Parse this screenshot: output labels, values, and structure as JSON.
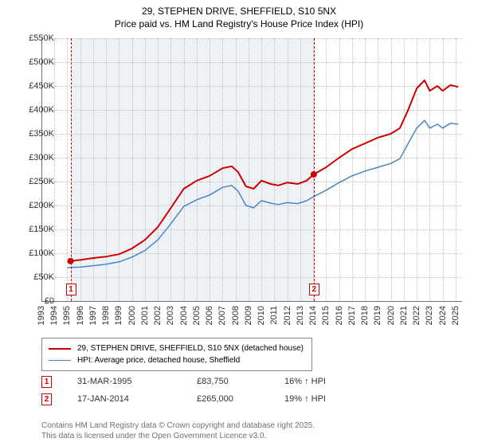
{
  "title_line1": "29, STEPHEN DRIVE, SHEFFIELD, S10 5NX",
  "title_line2": "Price paid vs. HM Land Registry's House Price Index (HPI)",
  "chart": {
    "background_color": "#ffffff",
    "shade_color": "#eef2f7",
    "grid_color": "#bfbfbf",
    "axis_color": "#707070",
    "x_years": [
      1993,
      1994,
      1995,
      1996,
      1997,
      1998,
      1999,
      2000,
      2001,
      2002,
      2003,
      2004,
      2005,
      2006,
      2007,
      2008,
      2009,
      2010,
      2011,
      2012,
      2013,
      2014,
      2015,
      2016,
      2017,
      2018,
      2019,
      2020,
      2021,
      2022,
      2023,
      2024,
      2025
    ],
    "xlim": [
      1993,
      2025.5
    ],
    "ylim": [
      0,
      550000
    ],
    "ytick_step": 50000,
    "yticks": [
      "£0",
      "£50K",
      "£100K",
      "£150K",
      "£200K",
      "£250K",
      "£300K",
      "£350K",
      "£400K",
      "£450K",
      "£500K",
      "£550K"
    ],
    "series": [
      {
        "name": "price_paid",
        "label": "29, STEPHEN DRIVE, SHEFFIELD, S10 5NX (detached house)",
        "color": "#cc0000",
        "width": 2,
        "points": [
          [
            1995.25,
            83750
          ],
          [
            1996,
            86000
          ],
          [
            1997,
            90000
          ],
          [
            1998,
            93000
          ],
          [
            1999,
            98000
          ],
          [
            2000,
            110000
          ],
          [
            2001,
            128000
          ],
          [
            2002,
            155000
          ],
          [
            2003,
            195000
          ],
          [
            2004,
            235000
          ],
          [
            2005,
            252000
          ],
          [
            2006,
            262000
          ],
          [
            2007,
            278000
          ],
          [
            2007.7,
            282000
          ],
          [
            2008.2,
            270000
          ],
          [
            2008.8,
            240000
          ],
          [
            2009.4,
            235000
          ],
          [
            2010,
            252000
          ],
          [
            2010.7,
            245000
          ],
          [
            2011.3,
            242000
          ],
          [
            2012,
            248000
          ],
          [
            2012.8,
            245000
          ],
          [
            2013.5,
            252000
          ],
          [
            2014.04,
            265000
          ],
          [
            2015,
            280000
          ],
          [
            2016,
            300000
          ],
          [
            2017,
            318000
          ],
          [
            2018,
            330000
          ],
          [
            2019,
            342000
          ],
          [
            2020,
            350000
          ],
          [
            2020.7,
            362000
          ],
          [
            2021.3,
            398000
          ],
          [
            2022,
            445000
          ],
          [
            2022.6,
            462000
          ],
          [
            2023,
            440000
          ],
          [
            2023.6,
            450000
          ],
          [
            2024,
            440000
          ],
          [
            2024.6,
            452000
          ],
          [
            2025.2,
            448000
          ]
        ]
      },
      {
        "name": "hpi",
        "label": "HPI: Average price, detached house, Sheffield",
        "color": "#4a86c5",
        "width": 1.5,
        "points": [
          [
            1995,
            70000
          ],
          [
            1996,
            71000
          ],
          [
            1997,
            74000
          ],
          [
            1998,
            77000
          ],
          [
            1999,
            82000
          ],
          [
            2000,
            92000
          ],
          [
            2001,
            106000
          ],
          [
            2002,
            128000
          ],
          [
            2003,
            162000
          ],
          [
            2004,
            198000
          ],
          [
            2005,
            212000
          ],
          [
            2006,
            222000
          ],
          [
            2007,
            238000
          ],
          [
            2007.7,
            242000
          ],
          [
            2008.2,
            230000
          ],
          [
            2008.8,
            200000
          ],
          [
            2009.4,
            195000
          ],
          [
            2010,
            210000
          ],
          [
            2010.7,
            205000
          ],
          [
            2011.3,
            202000
          ],
          [
            2012,
            206000
          ],
          [
            2012.8,
            204000
          ],
          [
            2013.5,
            210000
          ],
          [
            2014,
            218000
          ],
          [
            2015,
            232000
          ],
          [
            2016,
            248000
          ],
          [
            2017,
            262000
          ],
          [
            2018,
            272000
          ],
          [
            2019,
            280000
          ],
          [
            2020,
            288000
          ],
          [
            2020.7,
            298000
          ],
          [
            2021.3,
            328000
          ],
          [
            2022,
            362000
          ],
          [
            2022.6,
            378000
          ],
          [
            2023,
            362000
          ],
          [
            2023.6,
            370000
          ],
          [
            2024,
            362000
          ],
          [
            2024.6,
            372000
          ],
          [
            2025.2,
            370000
          ]
        ]
      }
    ],
    "sale_markers": [
      {
        "n": "1",
        "x": 1995.25,
        "y": 83750,
        "color": "#cc0000"
      },
      {
        "n": "2",
        "x": 2014.04,
        "y": 265000,
        "color": "#cc0000"
      }
    ],
    "marker_dot_radius": 4
  },
  "legend": {
    "items": [
      {
        "color": "#cc0000",
        "width": 2,
        "text": "29, STEPHEN DRIVE, SHEFFIELD, S10 5NX (detached house)"
      },
      {
        "color": "#4a86c5",
        "width": 1.5,
        "text": "HPI: Average price, detached house, Sheffield"
      }
    ]
  },
  "sales_table": [
    {
      "n": "1",
      "color": "#cc0000",
      "date": "31-MAR-1995",
      "price": "£83,750",
      "pct": "16% ↑ HPI"
    },
    {
      "n": "2",
      "color": "#cc0000",
      "date": "17-JAN-2014",
      "price": "£265,000",
      "pct": "19% ↑ HPI"
    }
  ],
  "footer_line1": "Contains HM Land Registry data © Crown copyright and database right 2025.",
  "footer_line2": "This data is licensed under the Open Government Licence v3.0."
}
